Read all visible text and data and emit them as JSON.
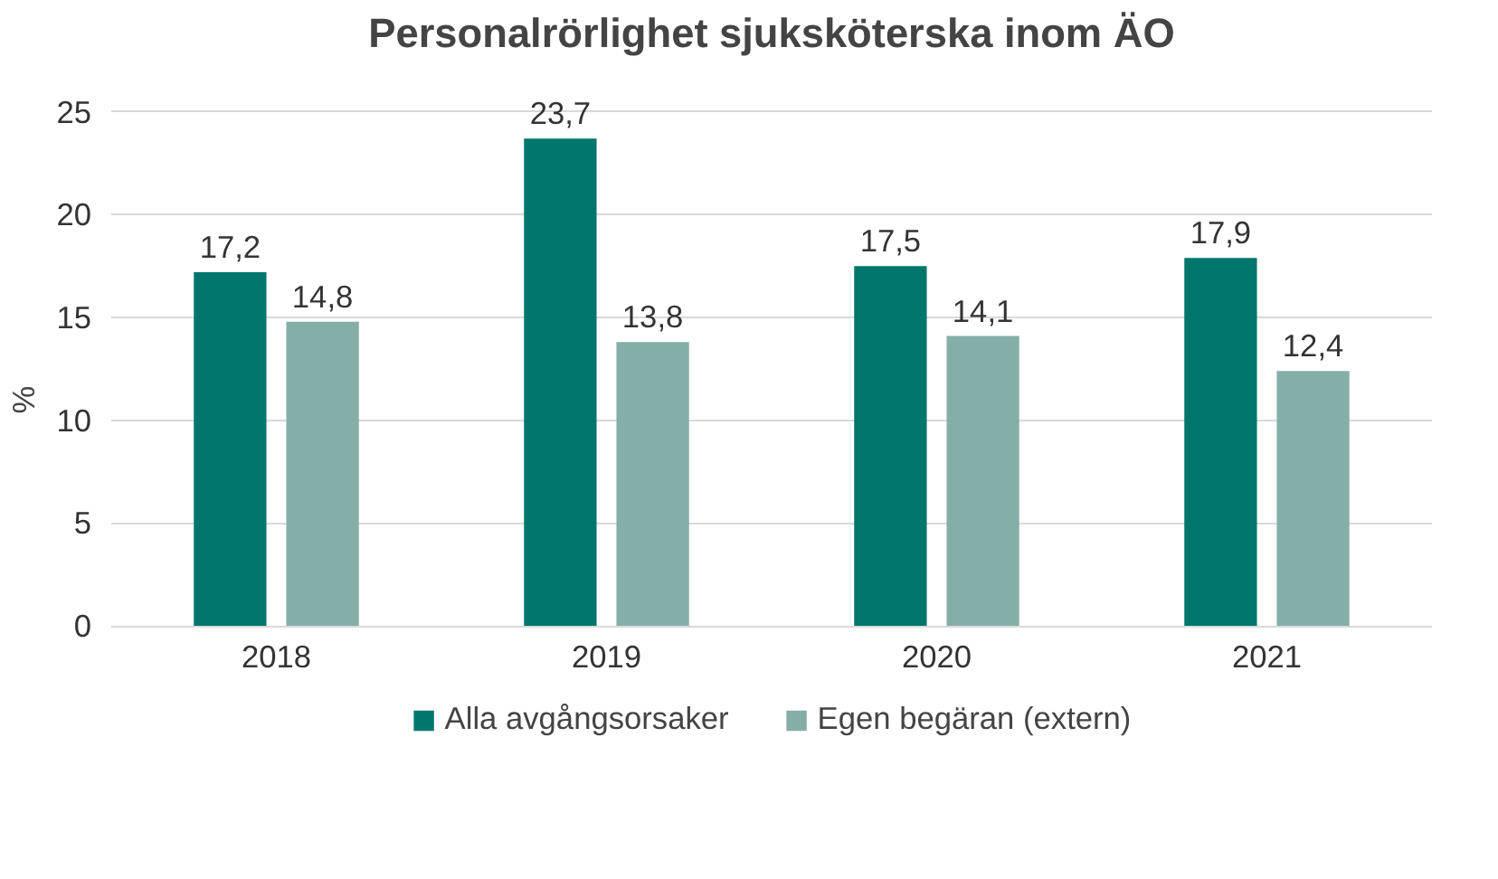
{
  "chart_data": {
    "type": "bar",
    "title": "Personalrörlighet sjuksköterska inom ÄO",
    "ylabel": "%",
    "categories": [
      "2018",
      "2019",
      "2020",
      "2021"
    ],
    "series": [
      {
        "name": "Alla avgångsorsaker",
        "color": "#00766c",
        "values": [
          17.2,
          23.7,
          17.5,
          17.9
        ],
        "value_labels": [
          "17,2",
          "23,7",
          "17,5",
          "17,9"
        ]
      },
      {
        "name": "Egen begäran (extern)",
        "color": "#86aea8",
        "values": [
          14.8,
          13.8,
          14.1,
          12.4
        ],
        "value_labels": [
          "14,8",
          "13,8",
          "14,1",
          "12,4"
        ]
      }
    ],
    "ylim": [
      0,
      25
    ],
    "yticks": [
      0,
      5,
      10,
      15,
      20,
      25
    ],
    "grid": "y",
    "legend": "bottom"
  }
}
